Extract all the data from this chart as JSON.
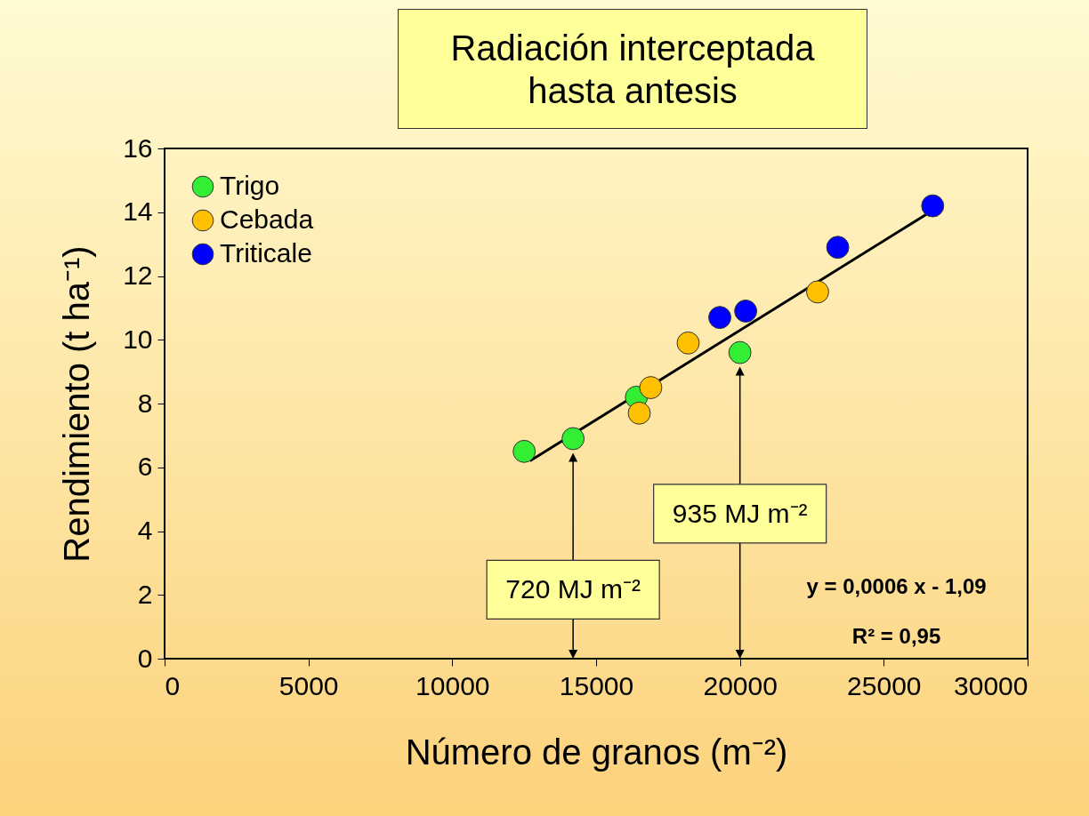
{
  "chart_data": {
    "type": "scatter",
    "title": "Radiación interceptada hasta antesis",
    "xlabel": "Número de granos (m⁻²)",
    "ylabel": "Rendimiento (t ha⁻¹)",
    "xlim": [
      0,
      30000
    ],
    "xticks": [
      0,
      5000,
      10000,
      15000,
      20000,
      25000,
      30000
    ],
    "ylim": [
      0,
      16
    ],
    "yticks": [
      0,
      2,
      4,
      6,
      8,
      10,
      12,
      14,
      16
    ],
    "grid": false,
    "legend": "top left",
    "marker": "circle",
    "series": [
      {
        "type": "line",
        "color": "#000000",
        "marker": "none",
        "x": [
          12700,
          26600
        ],
        "values": [
          6.2,
          14.0
        ]
      },
      {
        "name": "Trigo",
        "color": "#33ee33",
        "x": [
          12500,
          14200,
          16400,
          20000
        ],
        "values": [
          6.5,
          6.9,
          8.2,
          9.6
        ]
      },
      {
        "name": "Cebada",
        "color": "#ffc000",
        "x": [
          16500,
          16900,
          18200,
          22700
        ],
        "values": [
          7.7,
          8.5,
          9.9,
          11.5
        ]
      },
      {
        "name": "Triticale",
        "color": "#0000ff",
        "x": [
          19300,
          20200,
          23400,
          26700
        ],
        "values": [
          10.7,
          10.9,
          12.9,
          14.2
        ]
      }
    ],
    "annotations": [
      "y = 0,0006 x - 1,09",
      "R² = 0,95"
    ],
    "ref_lines": [
      {
        "axis": "x",
        "value": 14200,
        "label": "720 MJ m⁻²"
      },
      {
        "axis": "x",
        "value": 20000,
        "label": "935 MJ m⁻²"
      }
    ]
  }
}
